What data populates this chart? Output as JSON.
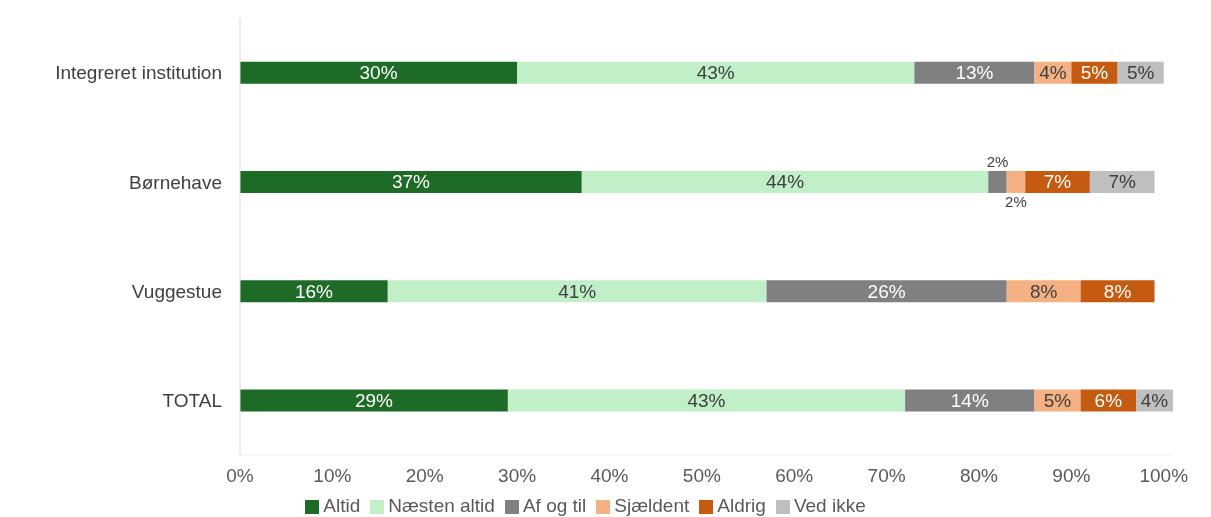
{
  "chart_data": {
    "type": "bar",
    "orientation": "horizontal",
    "stacked": true,
    "categories": [
      "Integreret institution",
      "Børnehave",
      "Vuggestue",
      "TOTAL"
    ],
    "series": [
      {
        "name": "Altid",
        "color": "#1d6b27",
        "values": [
          30,
          37,
          16,
          29
        ],
        "value_labels": [
          "30%",
          "37%",
          "16%",
          "29%"
        ]
      },
      {
        "name": "Næsten altid",
        "color": "#c1f0c8",
        "values": [
          43,
          44,
          41,
          43
        ],
        "value_labels": [
          "43%",
          "44%",
          "41%",
          "43%"
        ]
      },
      {
        "name": "Af og til",
        "color": "#808080",
        "values": [
          13,
          2,
          26,
          14
        ],
        "value_labels": [
          "13%",
          "2%",
          "26%",
          "14%"
        ]
      },
      {
        "name": "Sjældent",
        "color": "#f4b183",
        "values": [
          4,
          2,
          8,
          5
        ],
        "value_labels": [
          "4%",
          "2%",
          "8%",
          "5%"
        ]
      },
      {
        "name": "Aldrig",
        "color": "#c55a11",
        "values": [
          5,
          7,
          8,
          6
        ],
        "value_labels": [
          "5%",
          "7%",
          "8%",
          "6%"
        ]
      },
      {
        "name": "Ved ikke",
        "color": "#bfbfbf",
        "values": [
          5,
          7,
          null,
          4
        ],
        "value_labels": [
          "5%",
          "7%",
          null,
          "4%"
        ]
      }
    ],
    "xlim": [
      0,
      101
    ],
    "xticks": [
      {
        "value": 0,
        "label": "0%"
      },
      {
        "value": 10,
        "label": "10%"
      },
      {
        "value": 20,
        "label": "20%"
      },
      {
        "value": 30,
        "label": "30%"
      },
      {
        "value": 40,
        "label": "40%"
      },
      {
        "value": 50,
        "label": "50%"
      },
      {
        "value": 60,
        "label": "60%"
      },
      {
        "value": 70,
        "label": "70%"
      },
      {
        "value": 80,
        "label": "80%"
      },
      {
        "value": 90,
        "label": "90%"
      },
      {
        "value": 100,
        "label": "100%"
      }
    ],
    "grid": false,
    "legend": "bottom"
  }
}
